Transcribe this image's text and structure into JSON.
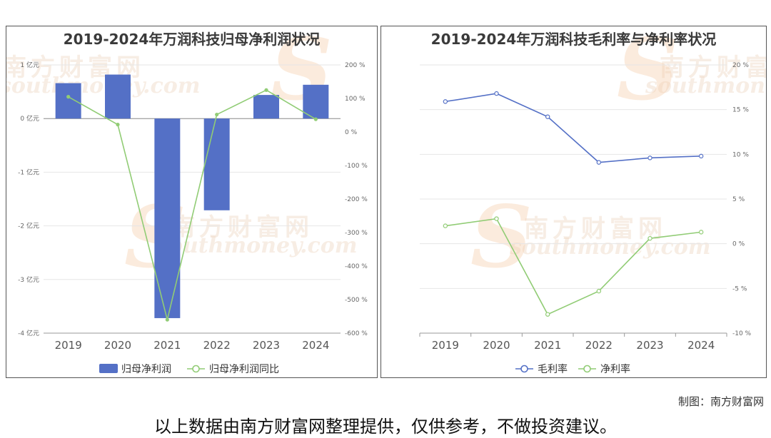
{
  "footer": {
    "credit": "制图：南方财富网",
    "disclaimer": "以上数据由南方财富网整理提供，仅供参考，不做投资建议。"
  },
  "watermark": {
    "cn": "南方财富网",
    "en": "southmoney.com",
    "s": "S"
  },
  "chart_data": [
    {
      "type": "bar+line",
      "title": "2019-2024年万润科技归母净利润状况",
      "categories": [
        "2019",
        "2020",
        "2021",
        "2022",
        "2023",
        "2024"
      ],
      "series": [
        {
          "name": "归母净利润",
          "type": "bar",
          "axis": "left",
          "color": "#5470c6",
          "values": [
            0.66,
            0.82,
            -3.72,
            -1.71,
            0.44,
            0.63
          ]
        },
        {
          "name": "归母净利润同比",
          "type": "line",
          "axis": "right",
          "color": "#91cc75",
          "values": [
            105,
            22,
            -560,
            52,
            125,
            38
          ]
        }
      ],
      "y_left": {
        "min": -4,
        "max": 1,
        "step": 1,
        "unit": "亿元"
      },
      "y_right": {
        "min": -600,
        "max": 200,
        "step": 100,
        "unit": "%"
      },
      "legend": "bottom"
    },
    {
      "type": "line",
      "title": "2019-2024年万润科技毛利率与净利率状况",
      "categories": [
        "2019",
        "2020",
        "2021",
        "2022",
        "2023",
        "2024"
      ],
      "series": [
        {
          "name": "毛利率",
          "color": "#5470c6",
          "values": [
            15.9,
            16.8,
            14.2,
            9.1,
            9.6,
            9.8
          ]
        },
        {
          "name": "净利率",
          "color": "#91cc75",
          "values": [
            2.0,
            2.8,
            -7.9,
            -5.3,
            0.6,
            1.3
          ]
        }
      ],
      "y_right": {
        "min": -10,
        "max": 20,
        "step": 5,
        "unit": "%"
      },
      "legend": "bottom"
    }
  ]
}
